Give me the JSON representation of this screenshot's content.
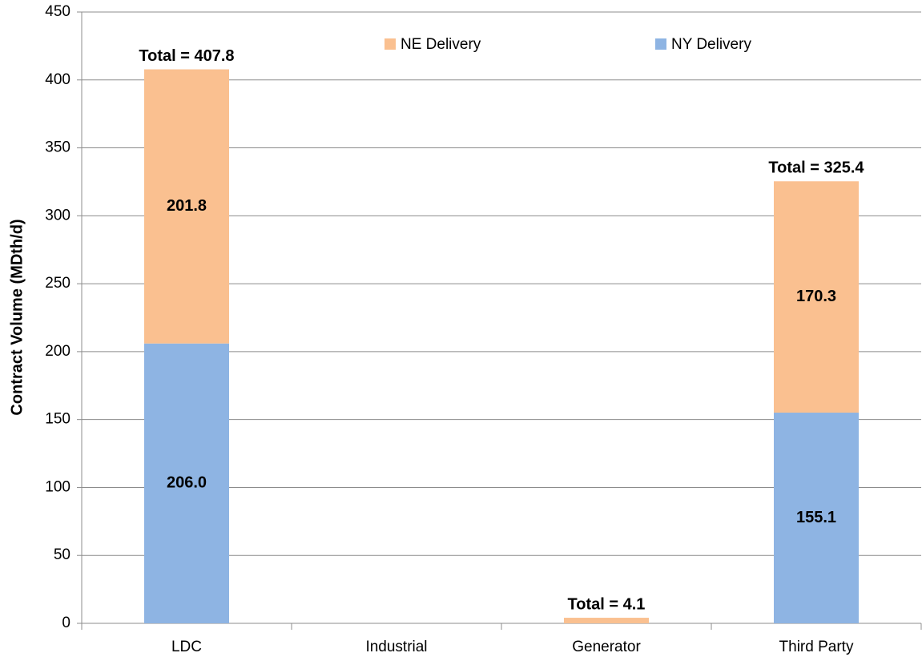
{
  "chart_data": {
    "type": "stacked_bar",
    "ylabel": "Contract Volume (MDth/d)",
    "categories": [
      "LDC",
      "Industrial",
      "Generator",
      "Third Party"
    ],
    "series": [
      {
        "name": "NY Delivery",
        "color": "#8eb4e3",
        "values": [
          206.0,
          0,
          0,
          155.1
        ],
        "value_labels": [
          "206.0",
          null,
          null,
          "155.1"
        ]
      },
      {
        "name": "NE Delivery",
        "color": "#fac090",
        "values": [
          201.8,
          0,
          4.1,
          170.3
        ],
        "value_labels": [
          "201.8",
          null,
          null,
          "170.3"
        ]
      }
    ],
    "totals": [
      "Total = 407.8",
      null,
      "Total = 4.1",
      "Total = 325.4"
    ],
    "ylim": [
      0,
      450
    ],
    "yticks": [
      0,
      50,
      100,
      150,
      200,
      250,
      300,
      350,
      400,
      450
    ],
    "grid": true,
    "legend": "top"
  }
}
